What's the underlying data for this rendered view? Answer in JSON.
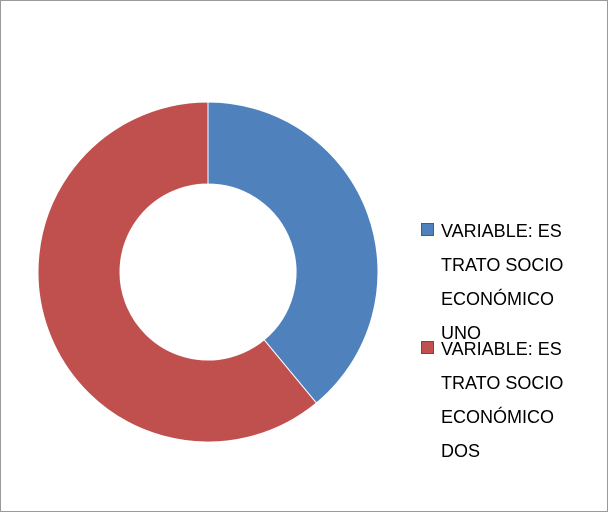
{
  "chart_data": {
    "type": "donut",
    "categories": [
      "VARIABLE: ESTRATO SOCIOECONÓMICO UNO",
      "VARIABLE: ESTRATO SOCIOECONÓMICO DOS"
    ],
    "values": [
      39,
      61
    ],
    "colors": [
      "#4f81bd",
      "#c0504d"
    ],
    "legend": "right"
  }
}
